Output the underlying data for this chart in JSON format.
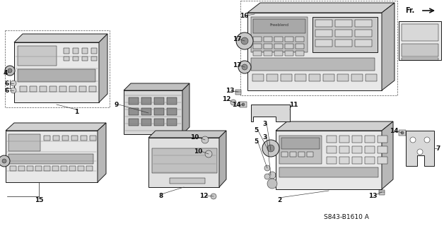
{
  "bg_color": "#ffffff",
  "part_number": "S843-B1610 A",
  "fr_label": "Fr.",
  "line_color": "#1a1a1a",
  "gray_light": "#c8c8c8",
  "gray_mid": "#a0a0a0",
  "gray_dark": "#707070",
  "gray_fill": "#e0e0e0",
  "fs_label": 6.5,
  "lw_main": 0.7,
  "lw_detail": 0.35
}
